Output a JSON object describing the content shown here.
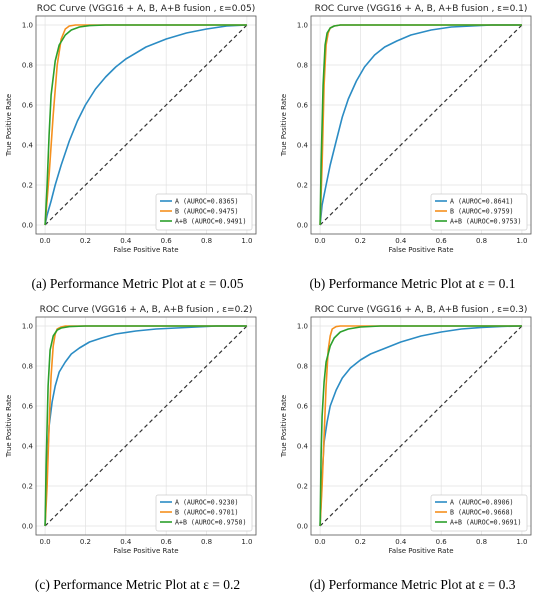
{
  "panels": [
    {
      "caption": "(a) Performance Metric Plot at ε = 0.05",
      "chart_data": {
        "type": "line",
        "title": "ROC Curve (VGG16 + A, B, A+B fusion , ε=0.05)",
        "xlabel": "False Positive Rate",
        "ylabel": "True Positive Rate",
        "xlim": [
          0,
          1
        ],
        "ylim": [
          0,
          1
        ],
        "xticks": [
          "0.0",
          "0.2",
          "0.4",
          "0.6",
          "0.8",
          "1.0"
        ],
        "yticks": [
          "0.0",
          "0.2",
          "0.4",
          "0.6",
          "0.8",
          "1.0"
        ],
        "grid": true,
        "legend_position": "lower-right",
        "series": [
          {
            "name": "A (AUROC=0.8365)",
            "color": "#2b8cc4",
            "x": [
              0,
              0.01,
              0.03,
              0.05,
              0.08,
              0.12,
              0.16,
              0.2,
              0.25,
              0.3,
              0.35,
              0.4,
              0.5,
              0.6,
              0.7,
              0.8,
              0.9,
              1.0
            ],
            "y": [
              0,
              0.05,
              0.12,
              0.2,
              0.3,
              0.42,
              0.52,
              0.6,
              0.68,
              0.74,
              0.79,
              0.83,
              0.89,
              0.93,
              0.96,
              0.98,
              0.995,
              1.0
            ]
          },
          {
            "name": "B (AUROC=0.9475)",
            "color": "#f5901e",
            "x": [
              0,
              0.02,
              0.04,
              0.06,
              0.08,
              0.1,
              0.12,
              0.15,
              0.2,
              0.4,
              1.0
            ],
            "y": [
              0,
              0.25,
              0.55,
              0.8,
              0.93,
              0.98,
              0.995,
              1.0,
              1.0,
              1.0,
              1.0
            ]
          },
          {
            "name": "A+B (AUROC=0.9491)",
            "color": "#2ca02c",
            "x": [
              0,
              0.01,
              0.02,
              0.03,
              0.05,
              0.07,
              0.1,
              0.13,
              0.17,
              0.22,
              0.3,
              0.5,
              1.0
            ],
            "y": [
              0,
              0.2,
              0.45,
              0.65,
              0.82,
              0.9,
              0.95,
              0.975,
              0.99,
              0.997,
              1.0,
              1.0,
              1.0
            ]
          }
        ]
      }
    },
    {
      "caption": "(b) Performance Metric Plot at ε = 0.1",
      "chart_data": {
        "type": "line",
        "title": "ROC Curve (VGG16 + A, B, A+B fusion , ε=0.1)",
        "xlabel": "False Positive Rate",
        "ylabel": "True Positive Rate",
        "xlim": [
          0,
          1
        ],
        "ylim": [
          0,
          1
        ],
        "xticks": [
          "0.0",
          "0.2",
          "0.4",
          "0.6",
          "0.8",
          "1.0"
        ],
        "yticks": [
          "0.0",
          "0.2",
          "0.4",
          "0.6",
          "0.8",
          "1.0"
        ],
        "grid": true,
        "legend_position": "lower-right",
        "series": [
          {
            "name": "A (AUROC=0.8641)",
            "color": "#2b8cc4",
            "x": [
              0,
              0.01,
              0.03,
              0.05,
              0.08,
              0.11,
              0.14,
              0.18,
              0.22,
              0.27,
              0.32,
              0.38,
              0.45,
              0.55,
              0.65,
              0.75,
              0.85,
              1.0
            ],
            "y": [
              0,
              0.1,
              0.2,
              0.3,
              0.42,
              0.54,
              0.63,
              0.72,
              0.79,
              0.85,
              0.89,
              0.92,
              0.95,
              0.975,
              0.99,
              0.995,
              1.0,
              1.0
            ]
          },
          {
            "name": "B (AUROC=0.9759)",
            "color": "#f5901e",
            "x": [
              0,
              0.01,
              0.02,
              0.03,
              0.04,
              0.05,
              0.07,
              0.1,
              0.3,
              1.0
            ],
            "y": [
              0,
              0.3,
              0.7,
              0.9,
              0.96,
              0.985,
              0.995,
              1.0,
              1.0,
              1.0
            ]
          },
          {
            "name": "A+B (AUROC=0.9753)",
            "color": "#2ca02c",
            "x": [
              0,
              0.005,
              0.015,
              0.025,
              0.035,
              0.05,
              0.07,
              0.1,
              0.2,
              1.0
            ],
            "y": [
              0,
              0.3,
              0.7,
              0.9,
              0.96,
              0.985,
              0.995,
              1.0,
              1.0,
              1.0
            ]
          }
        ]
      }
    },
    {
      "caption": "(c) Performance Metric Plot at ε = 0.2",
      "chart_data": {
        "type": "line",
        "title": "ROC Curve (VGG16 + A, B, A+B fusion , ε=0.2)",
        "xlabel": "False Positive Rate",
        "ylabel": "True Positive Rate",
        "xlim": [
          0,
          1
        ],
        "ylim": [
          0,
          1
        ],
        "xticks": [
          "0.0",
          "0.2",
          "0.4",
          "0.6",
          "0.8",
          "1.0"
        ],
        "yticks": [
          "0.0",
          "0.2",
          "0.4",
          "0.6",
          "0.8",
          "1.0"
        ],
        "grid": true,
        "legend_position": "lower-right",
        "series": [
          {
            "name": "A (AUROC=0.9230)",
            "color": "#2b8cc4",
            "x": [
              0,
              0.01,
              0.02,
              0.035,
              0.05,
              0.07,
              0.1,
              0.13,
              0.17,
              0.22,
              0.28,
              0.35,
              0.45,
              0.55,
              0.65,
              0.75,
              0.85,
              1.0
            ],
            "y": [
              0,
              0.3,
              0.5,
              0.62,
              0.7,
              0.77,
              0.82,
              0.86,
              0.89,
              0.92,
              0.94,
              0.96,
              0.975,
              0.985,
              0.99,
              0.995,
              1.0,
              1.0
            ]
          },
          {
            "name": "B (AUROC=0.9701)",
            "color": "#f5901e",
            "x": [
              0,
              0.01,
              0.02,
              0.03,
              0.04,
              0.05,
              0.06,
              0.08,
              0.1,
              0.3,
              1.0
            ],
            "y": [
              0,
              0.2,
              0.5,
              0.75,
              0.9,
              0.96,
              0.985,
              0.995,
              1.0,
              1.0,
              1.0
            ]
          },
          {
            "name": "A+B (AUROC=0.9750)",
            "color": "#2ca02c",
            "x": [
              0,
              0.005,
              0.015,
              0.025,
              0.04,
              0.06,
              0.08,
              0.12,
              0.2,
              1.0
            ],
            "y": [
              0,
              0.3,
              0.7,
              0.88,
              0.95,
              0.98,
              0.99,
              0.997,
              1.0,
              1.0
            ]
          }
        ]
      }
    },
    {
      "caption": "(d) Performance Metric Plot at ε = 0.3",
      "chart_data": {
        "type": "line",
        "title": "ROC Curve (VGG16 + A, B, A+B fusion , ε=0.3)",
        "xlabel": "False Positive Rate",
        "ylabel": "True Positive Rate",
        "xlim": [
          0,
          1
        ],
        "ylim": [
          0,
          1
        ],
        "xticks": [
          "0.0",
          "0.2",
          "0.4",
          "0.6",
          "0.8",
          "1.0"
        ],
        "yticks": [
          "0.0",
          "0.2",
          "0.4",
          "0.6",
          "0.8",
          "1.0"
        ],
        "grid": true,
        "legend_position": "lower-right",
        "series": [
          {
            "name": "A (AUROC=0.8906)",
            "color": "#2b8cc4",
            "x": [
              0,
              0.01,
              0.02,
              0.035,
              0.05,
              0.08,
              0.11,
              0.15,
              0.2,
              0.25,
              0.3,
              0.4,
              0.5,
              0.6,
              0.7,
              0.8,
              0.9,
              1.0
            ],
            "y": [
              0,
              0.25,
              0.42,
              0.52,
              0.6,
              0.68,
              0.74,
              0.79,
              0.83,
              0.86,
              0.88,
              0.92,
              0.95,
              0.97,
              0.985,
              0.993,
              0.998,
              1.0
            ]
          },
          {
            "name": "B (AUROC=0.9668)",
            "color": "#f5901e",
            "x": [
              0,
              0.01,
              0.02,
              0.03,
              0.04,
              0.05,
              0.06,
              0.08,
              0.1,
              0.3,
              1.0
            ],
            "y": [
              0,
              0.2,
              0.45,
              0.7,
              0.88,
              0.95,
              0.985,
              0.997,
              1.0,
              1.0,
              1.0
            ]
          },
          {
            "name": "A+B (AUROC=0.9691)",
            "color": "#2ca02c",
            "x": [
              0,
              0.005,
              0.01,
              0.02,
              0.03,
              0.05,
              0.07,
              0.1,
              0.14,
              0.2,
              0.3,
              1.0
            ],
            "y": [
              0,
              0.35,
              0.55,
              0.72,
              0.82,
              0.9,
              0.94,
              0.97,
              0.985,
              0.995,
              1.0,
              1.0
            ]
          }
        ]
      }
    }
  ]
}
